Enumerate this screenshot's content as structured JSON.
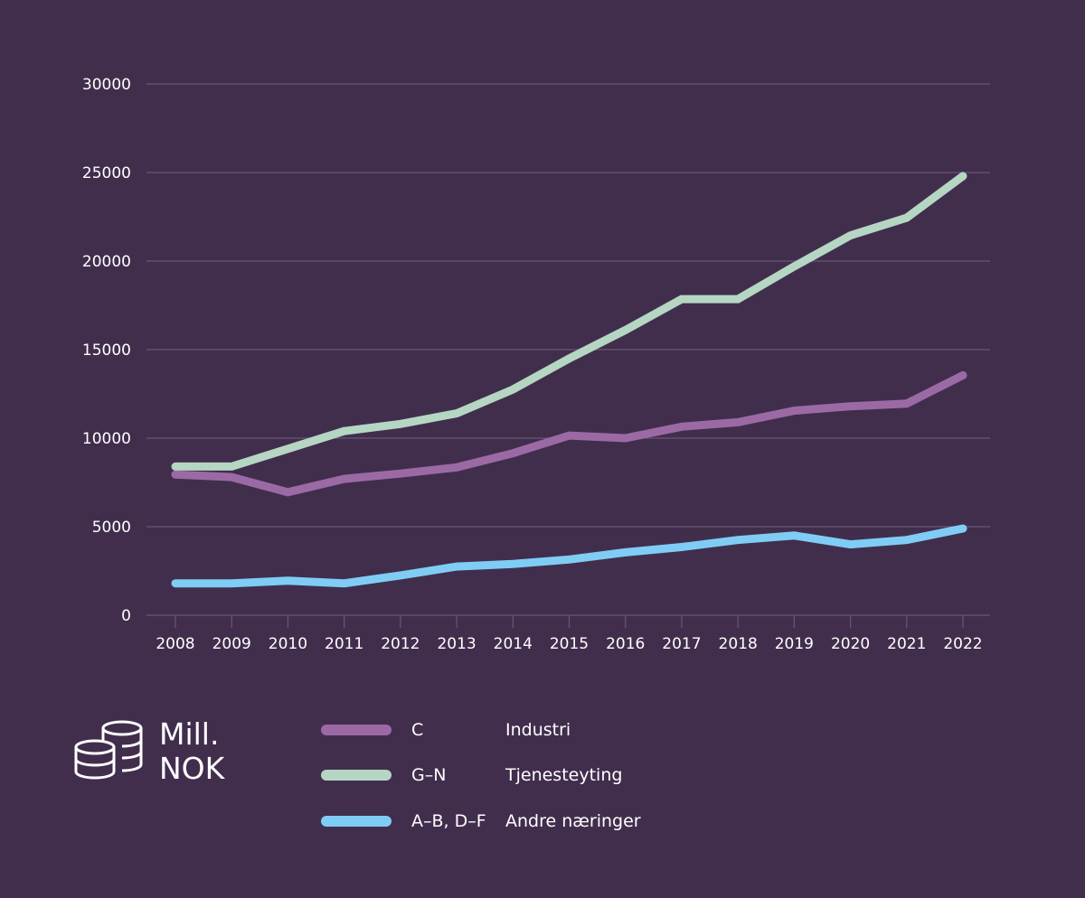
{
  "unit": {
    "line1": "Mill.",
    "line2": "NOK",
    "icon": "coins-icon"
  },
  "chart_data": {
    "type": "line",
    "title": "",
    "xlabel": "",
    "ylabel": "Mill. NOK",
    "x": [
      "2008",
      "2009",
      "2010",
      "2011",
      "2012",
      "2013",
      "2014",
      "2015",
      "2016",
      "2017",
      "2018",
      "2019",
      "2020",
      "2021",
      "2022"
    ],
    "ylim": [
      0,
      30000
    ],
    "yticks": [
      0,
      5000,
      10000,
      15000,
      20000,
      25000,
      30000
    ],
    "ytick_labels": [
      "0",
      "5000",
      "10000",
      "15000",
      "20000",
      "25000",
      "30000"
    ],
    "grid": true,
    "legend_position": "bottom",
    "series": [
      {
        "code": "C",
        "name": "Industri",
        "color": "#9b6aa5",
        "values": [
          7950,
          7800,
          6950,
          7700,
          8000,
          8350,
          9150,
          10150,
          10000,
          10650,
          10900,
          11550,
          11800,
          11950,
          13550
        ]
      },
      {
        "code": "G–N",
        "name": "Tjenesteyting",
        "color": "#b5d6c3",
        "values": [
          8400,
          8400,
          9400,
          10400,
          10800,
          11400,
          12750,
          14500,
          16100,
          17850,
          17850,
          19700,
          21450,
          22450,
          24800
        ]
      },
      {
        "code": "A–B, D–F",
        "name": "Andre næringer",
        "color": "#7fcdf5",
        "values": [
          1800,
          1800,
          1950,
          1800,
          2250,
          2750,
          2900,
          3150,
          3550,
          3850,
          4250,
          4500,
          4000,
          4250,
          4900
        ]
      }
    ]
  },
  "colors": {
    "background": "#412e4d",
    "grid": "#6a5676",
    "text": "#ffffff"
  }
}
